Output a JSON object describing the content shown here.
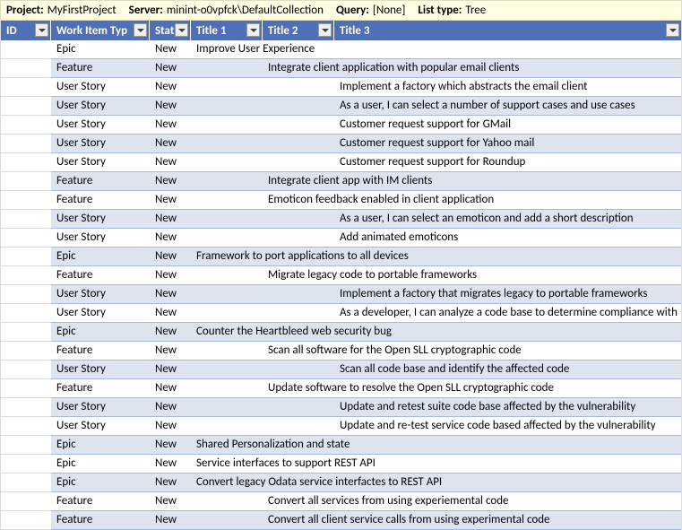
{
  "info_bar": {
    "project_label": "Project:",
    "project_value": "MyFirstProject",
    "server_label": "Server:",
    "server_value": "minint-o0vpfck\\DefaultCollection",
    "query_label": "Query:",
    "query_value": "[None]",
    "list_label": "List type:",
    "list_value": "Tree"
  },
  "columns": {
    "id": "ID",
    "type": "Work Item Typ",
    "state": "Stat",
    "title1": "Title 1",
    "title2": "Title 2",
    "title3": "Title 3"
  },
  "rows": [
    {
      "type": "Epic",
      "state": "New",
      "level": 1,
      "title": "Improve User Experience"
    },
    {
      "type": "Feature",
      "state": "New",
      "level": 2,
      "title": "Integrate client application with popular email clients"
    },
    {
      "type": "User Story",
      "state": "New",
      "level": 3,
      "title": "Implement a factory which abstracts the email client"
    },
    {
      "type": "User Story",
      "state": "New",
      "level": 3,
      "title": "As a user, I can select a number of support cases and use cases"
    },
    {
      "type": "User Story",
      "state": "New",
      "level": 3,
      "title": "Customer request support for GMail"
    },
    {
      "type": "User Story",
      "state": "New",
      "level": 3,
      "title": "Customer request support for Yahoo mail"
    },
    {
      "type": "User Story",
      "state": "New",
      "level": 3,
      "title": "Customer request support for Roundup"
    },
    {
      "type": "Feature",
      "state": "New",
      "level": 2,
      "title": "Integrate client app with IM clients"
    },
    {
      "type": "Feature",
      "state": "New",
      "level": 2,
      "title": "Emoticon feedback enabled in client application"
    },
    {
      "type": "User Story",
      "state": "New",
      "level": 3,
      "title": "As a user, I can select an emoticon and add a short description"
    },
    {
      "type": "User Story",
      "state": "New",
      "level": 3,
      "title": "Add animated emoticons"
    },
    {
      "type": "Epic",
      "state": "New",
      "level": 1,
      "title": "Framework to port applications to all devices"
    },
    {
      "type": "Feature",
      "state": "New",
      "level": 2,
      "title": "Migrate legacy code to portable frameworks"
    },
    {
      "type": "User Story",
      "state": "New",
      "level": 3,
      "title": "Implement a factory that migrates legacy to portable frameworks"
    },
    {
      "type": "User Story",
      "state": "New",
      "level": 3,
      "title": "As a developer, I can analyze a code base to determine compliance with"
    },
    {
      "type": "Epic",
      "state": "New",
      "level": 1,
      "title": "Counter the Heartbleed web security bug"
    },
    {
      "type": "Feature",
      "state": "New",
      "level": 2,
      "title": "Scan all software for the Open SLL cryptographic code"
    },
    {
      "type": "User Story",
      "state": "New",
      "level": 3,
      "title": "Scan all code base and identify the affected code"
    },
    {
      "type": "Feature",
      "state": "New",
      "level": 2,
      "title": "Update software to resolve the Open SLL cryptographic code"
    },
    {
      "type": "User Story",
      "state": "New",
      "level": 3,
      "title": "Update and retest suite code base affected by the vulnerability"
    },
    {
      "type": "User Story",
      "state": "New",
      "level": 3,
      "title": "Update and re-test service code based affected by the vulnerability"
    },
    {
      "type": "Epic",
      "state": "New",
      "level": 1,
      "title": "Shared Personalization and state"
    },
    {
      "type": "Epic",
      "state": "New",
      "level": 1,
      "title": "Service interfaces to support REST API"
    },
    {
      "type": "Epic",
      "state": "New",
      "level": 1,
      "title": "Convert legacy Odata service interfactes to REST API"
    },
    {
      "type": "Feature",
      "state": "New",
      "level": 2,
      "title": "Convert all services from using experiemental code"
    },
    {
      "type": "Feature",
      "state": "New",
      "level": 2,
      "title": "Convert all client service calls from using experimental code"
    }
  ],
  "colors": {
    "info_bg": "#fdfde3",
    "header_bg": "#4f6fb6",
    "row_even": "#ffffff",
    "row_odd": "#dde4f0",
    "border": "#a6b8df"
  }
}
